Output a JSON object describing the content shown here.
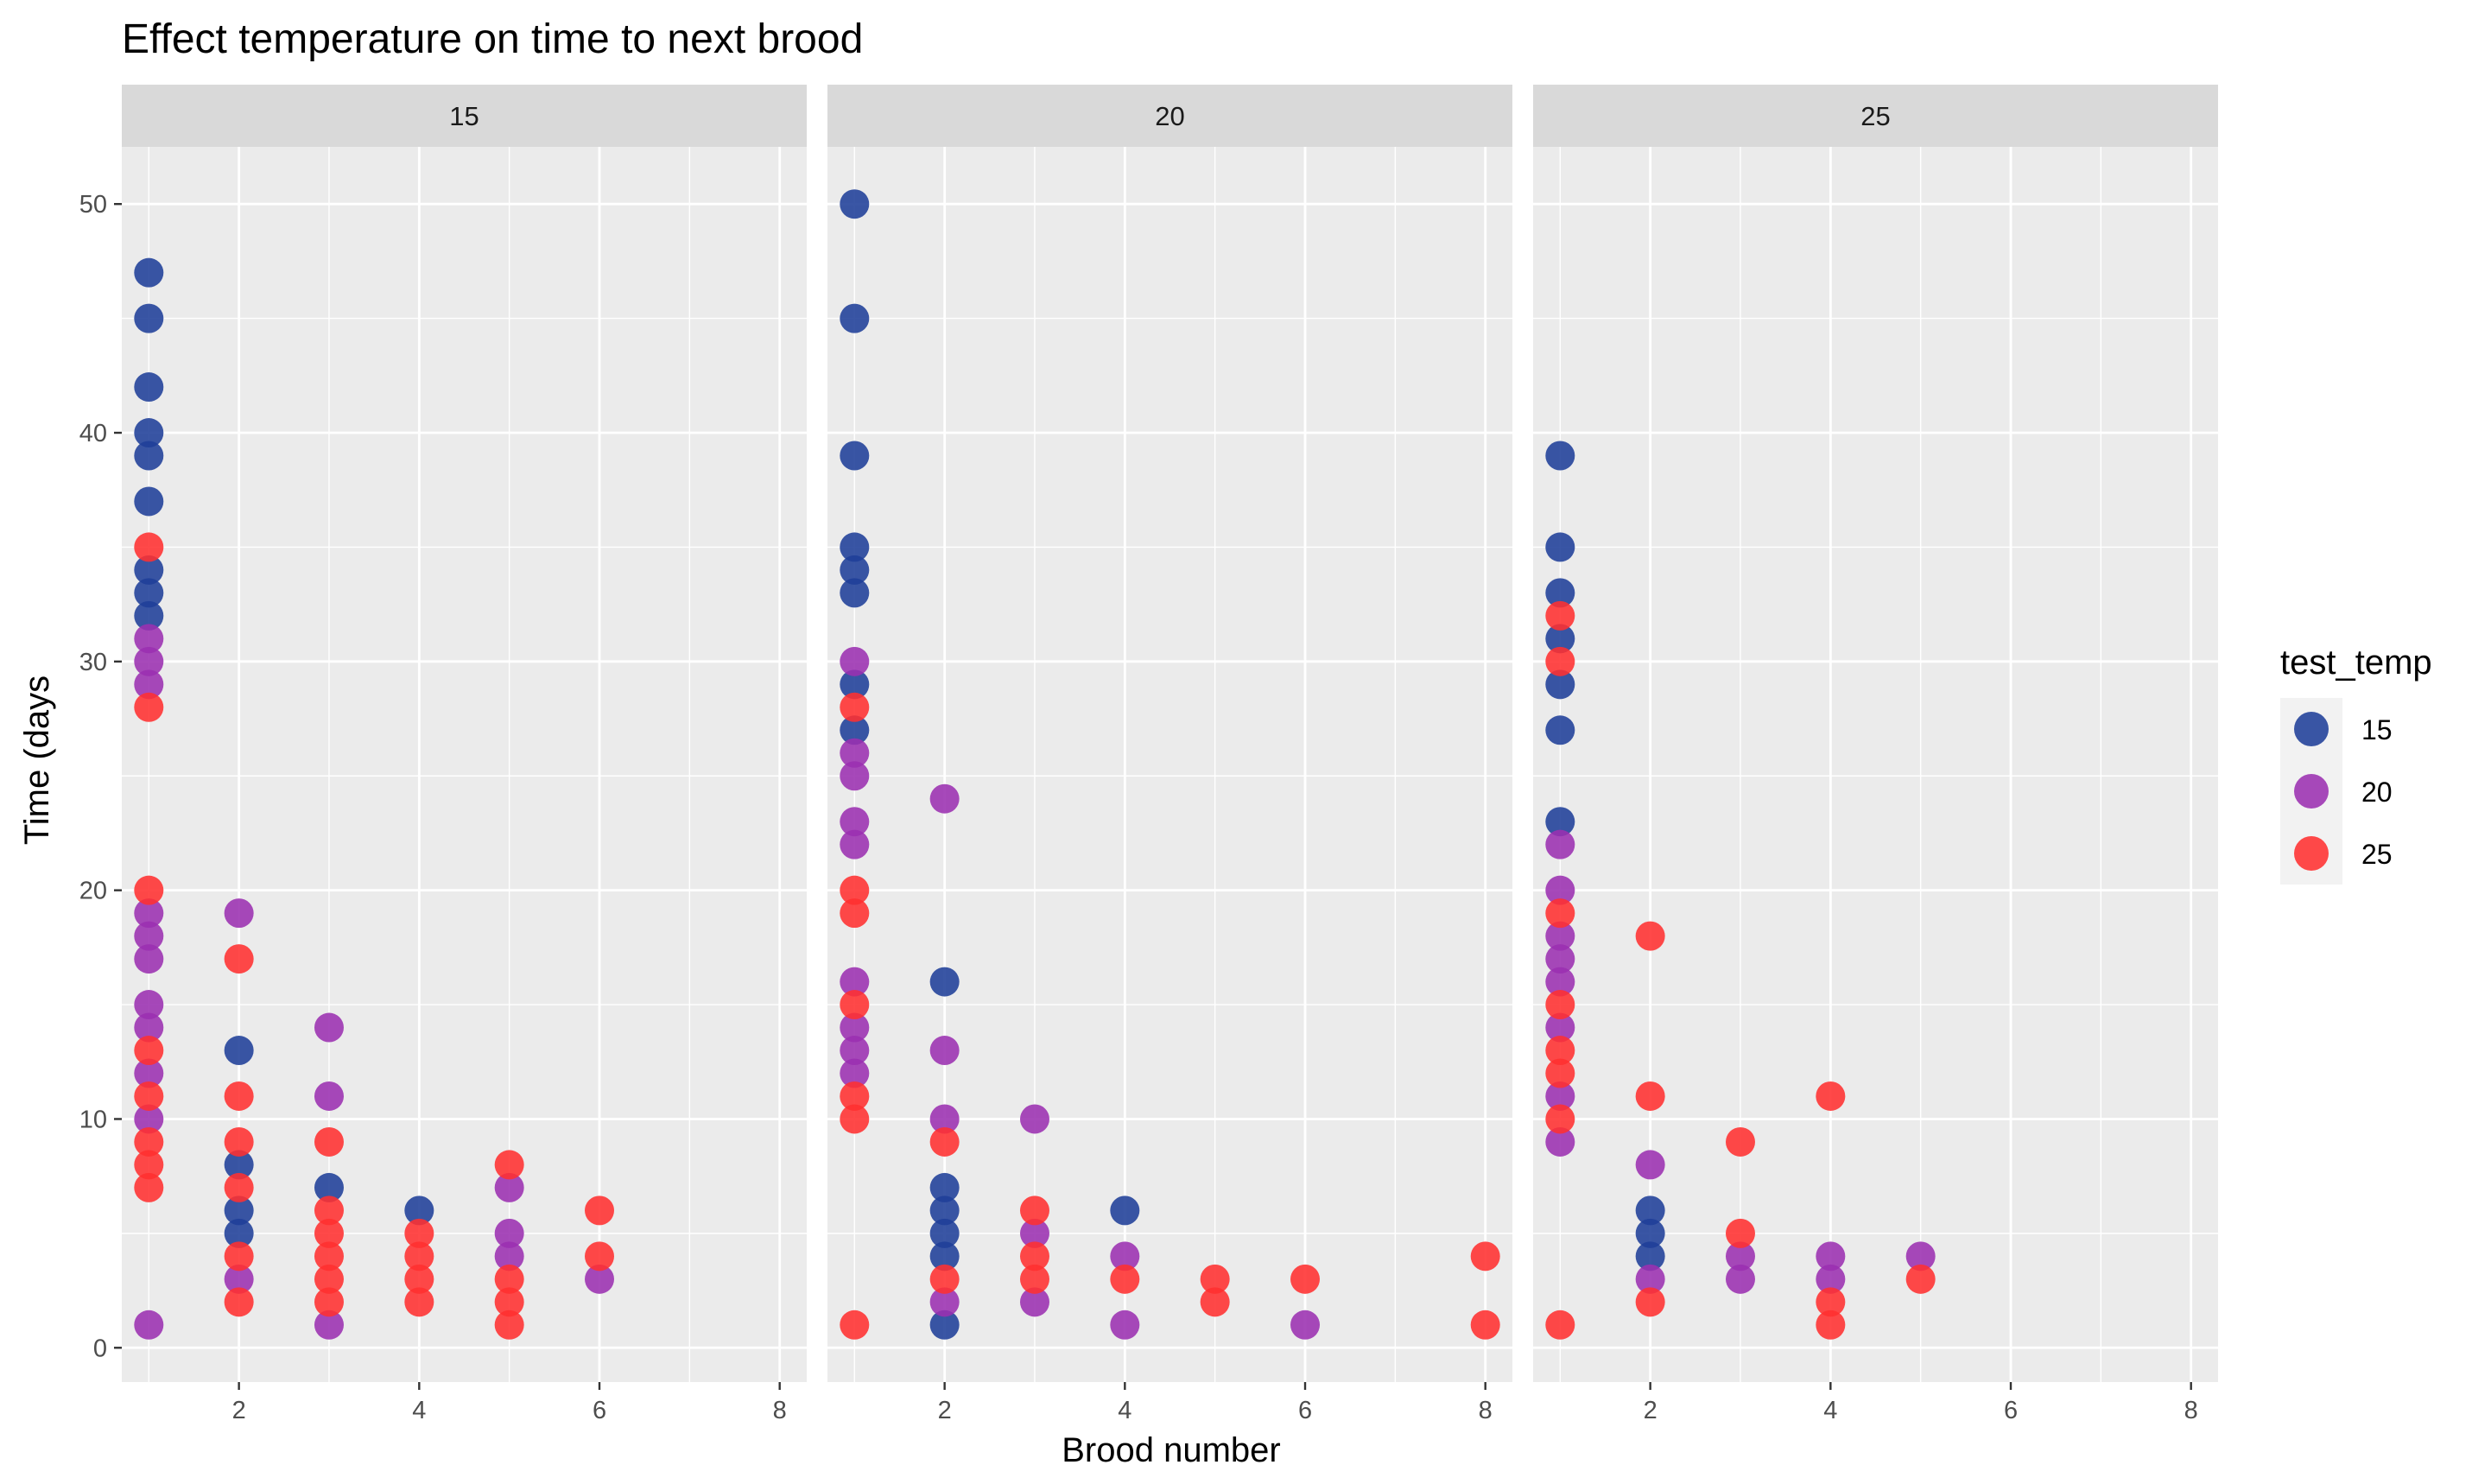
{
  "chart_data": {
    "type": "scatter",
    "title": "Effect temperature on time to next brood",
    "xlabel": "Brood number",
    "ylabel": "Time (days",
    "xlim": [
      0.7,
      8.3
    ],
    "ylim": [
      -1.5,
      52.5
    ],
    "x_ticks": [
      2,
      4,
      6,
      8
    ],
    "y_ticks": [
      0,
      10,
      20,
      30,
      40,
      50
    ],
    "grid": true,
    "legend": {
      "title": "test_temp",
      "position": "right",
      "entries": [
        {
          "label": "15",
          "color": "#1f3f99"
        },
        {
          "label": "20",
          "color": "#9b30b0"
        },
        {
          "label": "25",
          "color": "#ff3030"
        }
      ]
    },
    "series_colors": {
      "15": "#1f3f99",
      "20": "#9b30b0",
      "25": "#ff3030"
    },
    "panels": [
      {
        "label": "15",
        "points": {
          "15": [
            [
              1,
              47
            ],
            [
              1,
              45
            ],
            [
              1,
              42
            ],
            [
              1,
              40
            ],
            [
              1,
              39
            ],
            [
              1,
              37
            ],
            [
              1,
              34
            ],
            [
              1,
              33
            ],
            [
              1,
              32
            ],
            [
              2,
              13
            ],
            [
              2,
              8
            ],
            [
              2,
              6
            ],
            [
              2,
              5
            ],
            [
              3,
              7
            ],
            [
              4,
              6
            ]
          ],
          "20": [
            [
              1,
              31
            ],
            [
              1,
              30
            ],
            [
              1,
              29
            ],
            [
              1,
              19
            ],
            [
              1,
              18
            ],
            [
              1,
              17
            ],
            [
              1,
              15
            ],
            [
              1,
              14
            ],
            [
              1,
              12
            ],
            [
              1,
              10
            ],
            [
              1,
              1
            ],
            [
              2,
              19
            ],
            [
              2,
              3
            ],
            [
              3,
              14
            ],
            [
              3,
              11
            ],
            [
              3,
              1
            ],
            [
              5,
              7
            ],
            [
              5,
              5
            ],
            [
              5,
              4
            ],
            [
              6,
              3
            ]
          ],
          "25": [
            [
              1,
              35
            ],
            [
              1,
              28
            ],
            [
              1,
              20
            ],
            [
              1,
              13
            ],
            [
              1,
              11
            ],
            [
              1,
              9
            ],
            [
              1,
              8
            ],
            [
              1,
              7
            ],
            [
              2,
              17
            ],
            [
              2,
              11
            ],
            [
              2,
              9
            ],
            [
              2,
              7
            ],
            [
              2,
              4
            ],
            [
              2,
              2
            ],
            [
              3,
              9
            ],
            [
              3,
              6
            ],
            [
              3,
              5
            ],
            [
              3,
              4
            ],
            [
              3,
              3
            ],
            [
              3,
              2
            ],
            [
              4,
              5
            ],
            [
              4,
              4
            ],
            [
              4,
              3
            ],
            [
              4,
              2
            ],
            [
              5,
              8
            ],
            [
              5,
              3
            ],
            [
              5,
              2
            ],
            [
              5,
              1
            ],
            [
              6,
              6
            ],
            [
              6,
              4
            ]
          ]
        }
      },
      {
        "label": "20",
        "points": {
          "15": [
            [
              1,
              50
            ],
            [
              1,
              45
            ],
            [
              1,
              39
            ],
            [
              1,
              35
            ],
            [
              1,
              34
            ],
            [
              1,
              33
            ],
            [
              1,
              29
            ],
            [
              1,
              27
            ],
            [
              2,
              16
            ],
            [
              2,
              7
            ],
            [
              2,
              6
            ],
            [
              2,
              5
            ],
            [
              2,
              4
            ],
            [
              2,
              1
            ],
            [
              4,
              6
            ]
          ],
          "20": [
            [
              1,
              30
            ],
            [
              1,
              26
            ],
            [
              1,
              25
            ],
            [
              1,
              23
            ],
            [
              1,
              22
            ],
            [
              1,
              16
            ],
            [
              1,
              14
            ],
            [
              1,
              13
            ],
            [
              1,
              12
            ],
            [
              2,
              24
            ],
            [
              2,
              13
            ],
            [
              2,
              10
            ],
            [
              2,
              2
            ],
            [
              3,
              10
            ],
            [
              3,
              5
            ],
            [
              3,
              2
            ],
            [
              4,
              4
            ],
            [
              4,
              1
            ],
            [
              6,
              1
            ]
          ],
          "25": [
            [
              1,
              28
            ],
            [
              1,
              20
            ],
            [
              1,
              19
            ],
            [
              1,
              15
            ],
            [
              1,
              11
            ],
            [
              1,
              10
            ],
            [
              1,
              1
            ],
            [
              2,
              9
            ],
            [
              2,
              3
            ],
            [
              3,
              6
            ],
            [
              3,
              4
            ],
            [
              3,
              3
            ],
            [
              4,
              3
            ],
            [
              5,
              3
            ],
            [
              5,
              2
            ],
            [
              6,
              3
            ],
            [
              8,
              4
            ],
            [
              8,
              1
            ]
          ]
        }
      },
      {
        "label": "25",
        "points": {
          "15": [
            [
              1,
              39
            ],
            [
              1,
              35
            ],
            [
              1,
              33
            ],
            [
              1,
              31
            ],
            [
              1,
              29
            ],
            [
              1,
              27
            ],
            [
              1,
              23
            ],
            [
              2,
              6
            ],
            [
              2,
              5
            ],
            [
              2,
              4
            ]
          ],
          "20": [
            [
              1,
              22
            ],
            [
              1,
              20
            ],
            [
              1,
              18
            ],
            [
              1,
              17
            ],
            [
              1,
              16
            ],
            [
              1,
              14
            ],
            [
              1,
              11
            ],
            [
              1,
              9
            ],
            [
              2,
              8
            ],
            [
              2,
              3
            ],
            [
              3,
              4
            ],
            [
              3,
              3
            ],
            [
              4,
              4
            ],
            [
              4,
              3
            ],
            [
              5,
              4
            ]
          ],
          "25": [
            [
              1,
              32
            ],
            [
              1,
              30
            ],
            [
              1,
              19
            ],
            [
              1,
              15
            ],
            [
              1,
              13
            ],
            [
              1,
              12
            ],
            [
              1,
              10
            ],
            [
              1,
              1
            ],
            [
              2,
              18
            ],
            [
              2,
              11
            ],
            [
              2,
              2
            ],
            [
              3,
              9
            ],
            [
              3,
              5
            ],
            [
              4,
              11
            ],
            [
              4,
              2
            ],
            [
              4,
              1
            ],
            [
              5,
              3
            ]
          ]
        }
      }
    ]
  }
}
